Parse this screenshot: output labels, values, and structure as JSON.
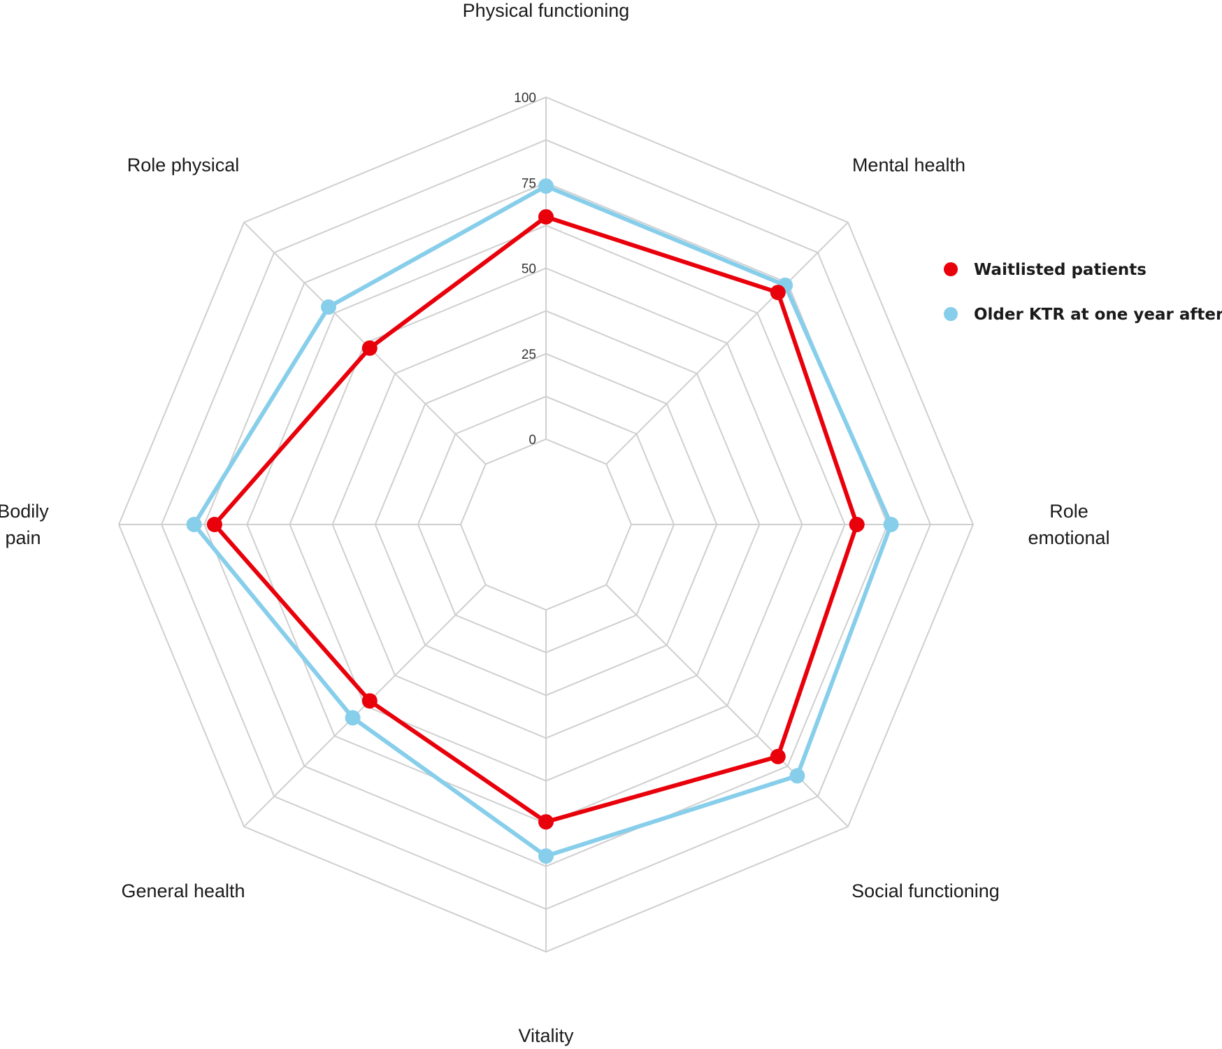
{
  "chart_data": {
    "type": "radar",
    "axes": [
      {
        "label": [
          "Physical functioning"
        ]
      },
      {
        "label": [
          "Mental health"
        ]
      },
      {
        "label": [
          "Role",
          "emotional"
        ]
      },
      {
        "label": [
          "Social functioning"
        ]
      },
      {
        "label": [
          "Vitality"
        ]
      },
      {
        "label": [
          "General health"
        ]
      },
      {
        "label": [
          "Bodily",
          "pain"
        ]
      },
      {
        "label": [
          "Role physical"
        ]
      }
    ],
    "ticks": [
      0,
      25,
      50,
      75,
      100
    ],
    "range": [
      0,
      100
    ],
    "grid": true,
    "legend_position": "right",
    "series": [
      {
        "name": "Older KTR at one year after Tx",
        "color": "#87ceeb",
        "values": [
          74,
          74,
          76,
          79,
          72,
          55,
          78,
          65
        ]
      },
      {
        "name": "Waitlisted patients",
        "color": "#e8000b",
        "values": [
          65,
          71,
          66,
          71,
          62,
          48,
          72,
          48
        ]
      }
    ],
    "legend_order": [
      1,
      0
    ]
  }
}
